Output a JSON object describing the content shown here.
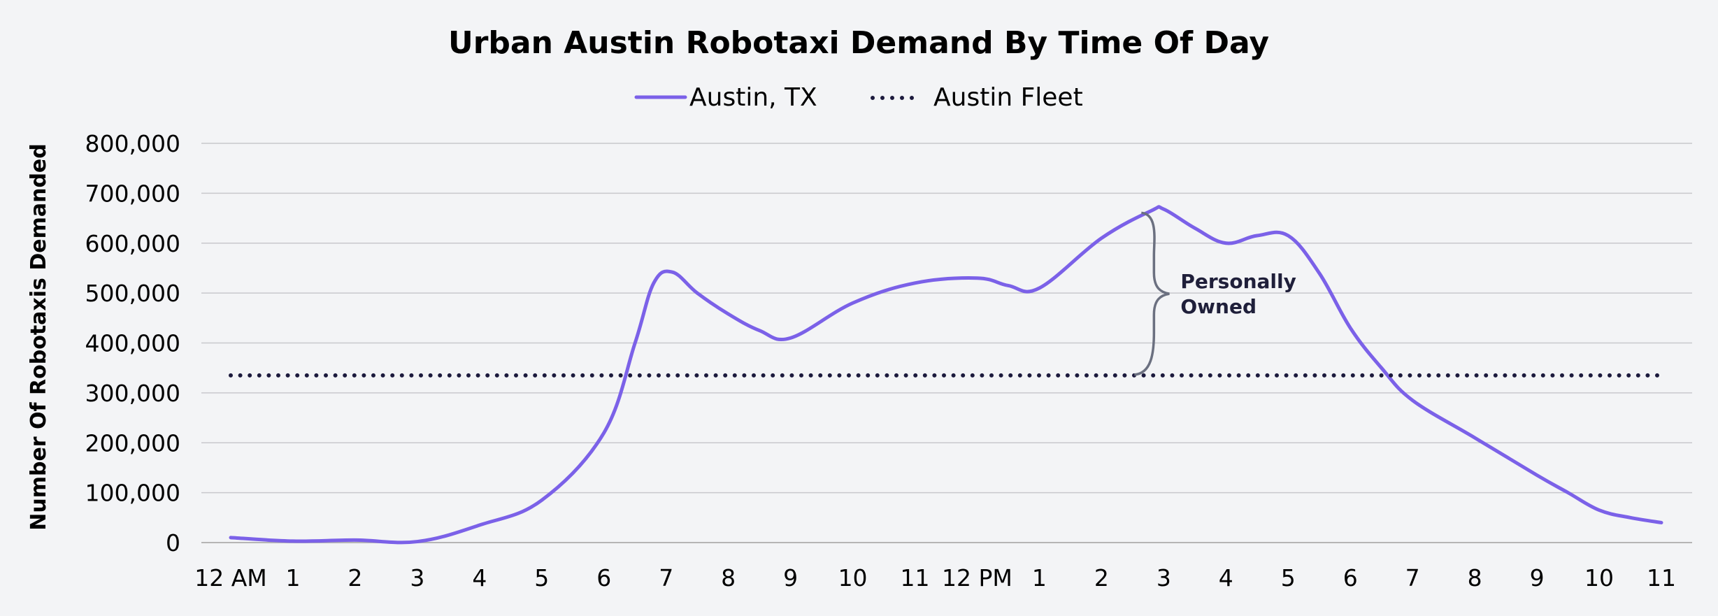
{
  "chart_data": {
    "type": "line",
    "title": "Urban Austin Robotaxi Demand By Time Of Day",
    "xlabel": "",
    "ylabel": "Number Of Robotaxis Demanded",
    "ylim": [
      0,
      800000
    ],
    "yticks": [
      0,
      100000,
      200000,
      300000,
      400000,
      500000,
      600000,
      700000,
      800000
    ],
    "ytick_labels": [
      "0",
      "100,000",
      "200,000",
      "300,000",
      "400,000",
      "500,000",
      "600,000",
      "700,000",
      "800,000"
    ],
    "categories": [
      "12 AM",
      "1",
      "2",
      "3",
      "4",
      "5",
      "6",
      "7",
      "8",
      "9",
      "10",
      "11",
      "12 PM",
      "1",
      "2",
      "3",
      "4",
      "5",
      "6",
      "7",
      "8",
      "9",
      "10",
      "11"
    ],
    "grid": true,
    "legend_position": "top-center",
    "series": [
      {
        "name": "Austin, TX",
        "style": "solid",
        "color": "#7b61e8",
        "points": [
          [
            0,
            10000
          ],
          [
            1,
            3000
          ],
          [
            2,
            5000
          ],
          [
            3,
            2000
          ],
          [
            4,
            35000
          ],
          [
            5,
            85000
          ],
          [
            6,
            220000
          ],
          [
            6.5,
            400000
          ],
          [
            6.8,
            520000
          ],
          [
            7.1,
            542000
          ],
          [
            7.5,
            500000
          ],
          [
            8,
            458000
          ],
          [
            8.5,
            425000
          ],
          [
            9,
            410000
          ],
          [
            10,
            480000
          ],
          [
            11,
            520000
          ],
          [
            12,
            530000
          ],
          [
            12.5,
            515000
          ],
          [
            13,
            510000
          ],
          [
            14,
            610000
          ],
          [
            14.8,
            665000
          ],
          [
            15,
            668000
          ],
          [
            15.5,
            630000
          ],
          [
            16,
            600000
          ],
          [
            16.5,
            615000
          ],
          [
            17,
            615000
          ],
          [
            17.5,
            540000
          ],
          [
            18,
            430000
          ],
          [
            18.5,
            350000
          ],
          [
            19,
            285000
          ],
          [
            20,
            210000
          ],
          [
            21,
            135000
          ],
          [
            21.5,
            100000
          ],
          [
            22,
            65000
          ],
          [
            22.5,
            50000
          ],
          [
            23,
            40000
          ]
        ]
      },
      {
        "name": "Austin Fleet",
        "style": "dotted",
        "color": "#1c1a3d",
        "value": 335000
      }
    ],
    "annotations": [
      {
        "text_lines": [
          "Personally",
          "Owned"
        ],
        "x": 15,
        "y_from": 335000,
        "y_to": 665000
      }
    ]
  }
}
